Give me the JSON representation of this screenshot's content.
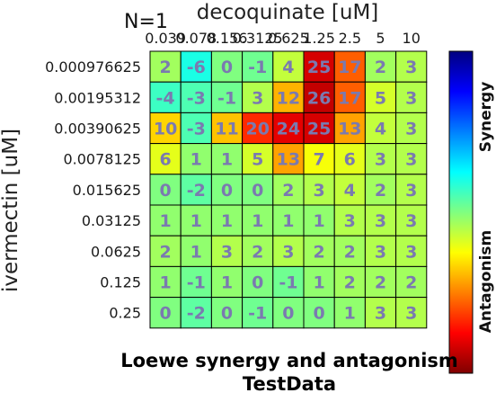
{
  "chart_data": {
    "type": "heatmap",
    "annotation": "N=1",
    "xlabel": "decoquinate [uM]",
    "ylabel": "ivermectin [uM]",
    "x_categories": [
      "0.039",
      "0.078",
      "0.156",
      "0.3125",
      "0.625",
      "1.25",
      "2.5",
      "5",
      "10"
    ],
    "y_categories": [
      "0.000976625",
      "0.00195312",
      "0.00390625",
      "0.0078125",
      "0.015625",
      "0.03125",
      "0.0625",
      "0.125",
      "0.25"
    ],
    "values": [
      [
        2,
        -6,
        0,
        -1,
        4,
        25,
        17,
        2,
        3
      ],
      [
        -4,
        -3,
        -1,
        3,
        12,
        26,
        17,
        5,
        3
      ],
      [
        10,
        -3,
        11,
        20,
        24,
        25,
        13,
        4,
        3
      ],
      [
        6,
        1,
        1,
        5,
        13,
        7,
        6,
        3,
        3
      ],
      [
        0,
        -2,
        0,
        0,
        2,
        3,
        4,
        2,
        3
      ],
      [
        1,
        1,
        1,
        1,
        1,
        1,
        3,
        3,
        3
      ],
      [
        2,
        1,
        3,
        2,
        3,
        2,
        2,
        3,
        3
      ],
      [
        1,
        -1,
        1,
        0,
        -1,
        1,
        2,
        2,
        2
      ],
      [
        0,
        -2,
        0,
        -1,
        0,
        0,
        1,
        3,
        3
      ]
    ],
    "colorbar": {
      "colormap": "jet",
      "range": [
        -30,
        30
      ],
      "top_label": "Synergy",
      "bottom_label": "Antagonism"
    },
    "title_line1": "Loewe synergy and antagonism",
    "title_line2": "TestData"
  }
}
